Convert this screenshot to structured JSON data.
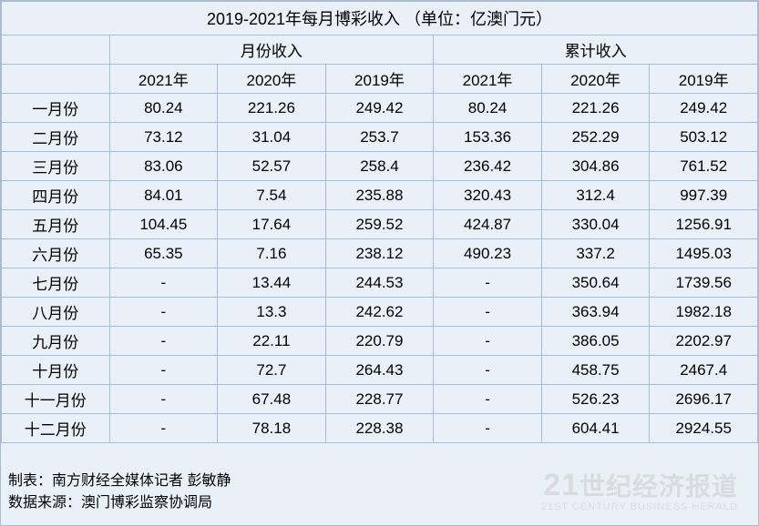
{
  "title": "2019-2021年每月博彩收入 （单位：亿澳门元）",
  "header_groups": [
    "月份收入",
    "累计收入"
  ],
  "year_headers": [
    "2021年",
    "2020年",
    "2019年",
    "2021年",
    "2020年",
    "2019年"
  ],
  "rows": [
    {
      "month": "一月份",
      "cells": [
        "80.24",
        "221.26",
        "249.42",
        "80.24",
        "221.26",
        "249.42"
      ]
    },
    {
      "month": "二月份",
      "cells": [
        "73.12",
        "31.04",
        "253.7",
        "153.36",
        "252.29",
        "503.12"
      ]
    },
    {
      "month": "三月份",
      "cells": [
        "83.06",
        "52.57",
        "258.4",
        "236.42",
        "304.86",
        "761.52"
      ]
    },
    {
      "month": "四月份",
      "cells": [
        "84.01",
        "7.54",
        "235.88",
        "320.43",
        "312.4",
        "997.39"
      ]
    },
    {
      "month": "五月份",
      "cells": [
        "104.45",
        "17.64",
        "259.52",
        "424.87",
        "330.04",
        "1256.91"
      ]
    },
    {
      "month": "六月份",
      "cells": [
        "65.35",
        "7.16",
        "238.12",
        "490.23",
        "337.2",
        "1495.03"
      ]
    },
    {
      "month": "七月份",
      "cells": [
        "-",
        "13.44",
        "244.53",
        "-",
        "350.64",
        "1739.56"
      ]
    },
    {
      "month": "八月份",
      "cells": [
        "-",
        "13.3",
        "242.62",
        "-",
        "363.94",
        "1982.18"
      ]
    },
    {
      "month": "九月份",
      "cells": [
        "-",
        "22.11",
        "220.79",
        "-",
        "386.05",
        "2202.97"
      ]
    },
    {
      "month": "十月份",
      "cells": [
        "-",
        "72.7",
        "264.43",
        "-",
        "458.75",
        "2467.4"
      ]
    },
    {
      "month": "十一月份",
      "cells": [
        "-",
        "67.48",
        "228.77",
        "-",
        "526.23",
        "2696.17"
      ]
    },
    {
      "month": "十二月份",
      "cells": [
        "-",
        "78.18",
        "228.38",
        "-",
        "604.41",
        "2924.55"
      ]
    }
  ],
  "footer": {
    "line1": "制表：南方财经全媒体记者 彭敏静",
    "line2": "数据来源：澳门博彩监察协调局"
  },
  "watermark": {
    "brand": "世纪经济报道",
    "brand_prefix": "21",
    "sub": "21ST CENTURY BUSINESS HERALD"
  },
  "style": {
    "cell_bg": "#eaf0f8",
    "border_color": "#a8bcd4",
    "text_color": "#000000",
    "watermark_color": "#cccccc"
  }
}
